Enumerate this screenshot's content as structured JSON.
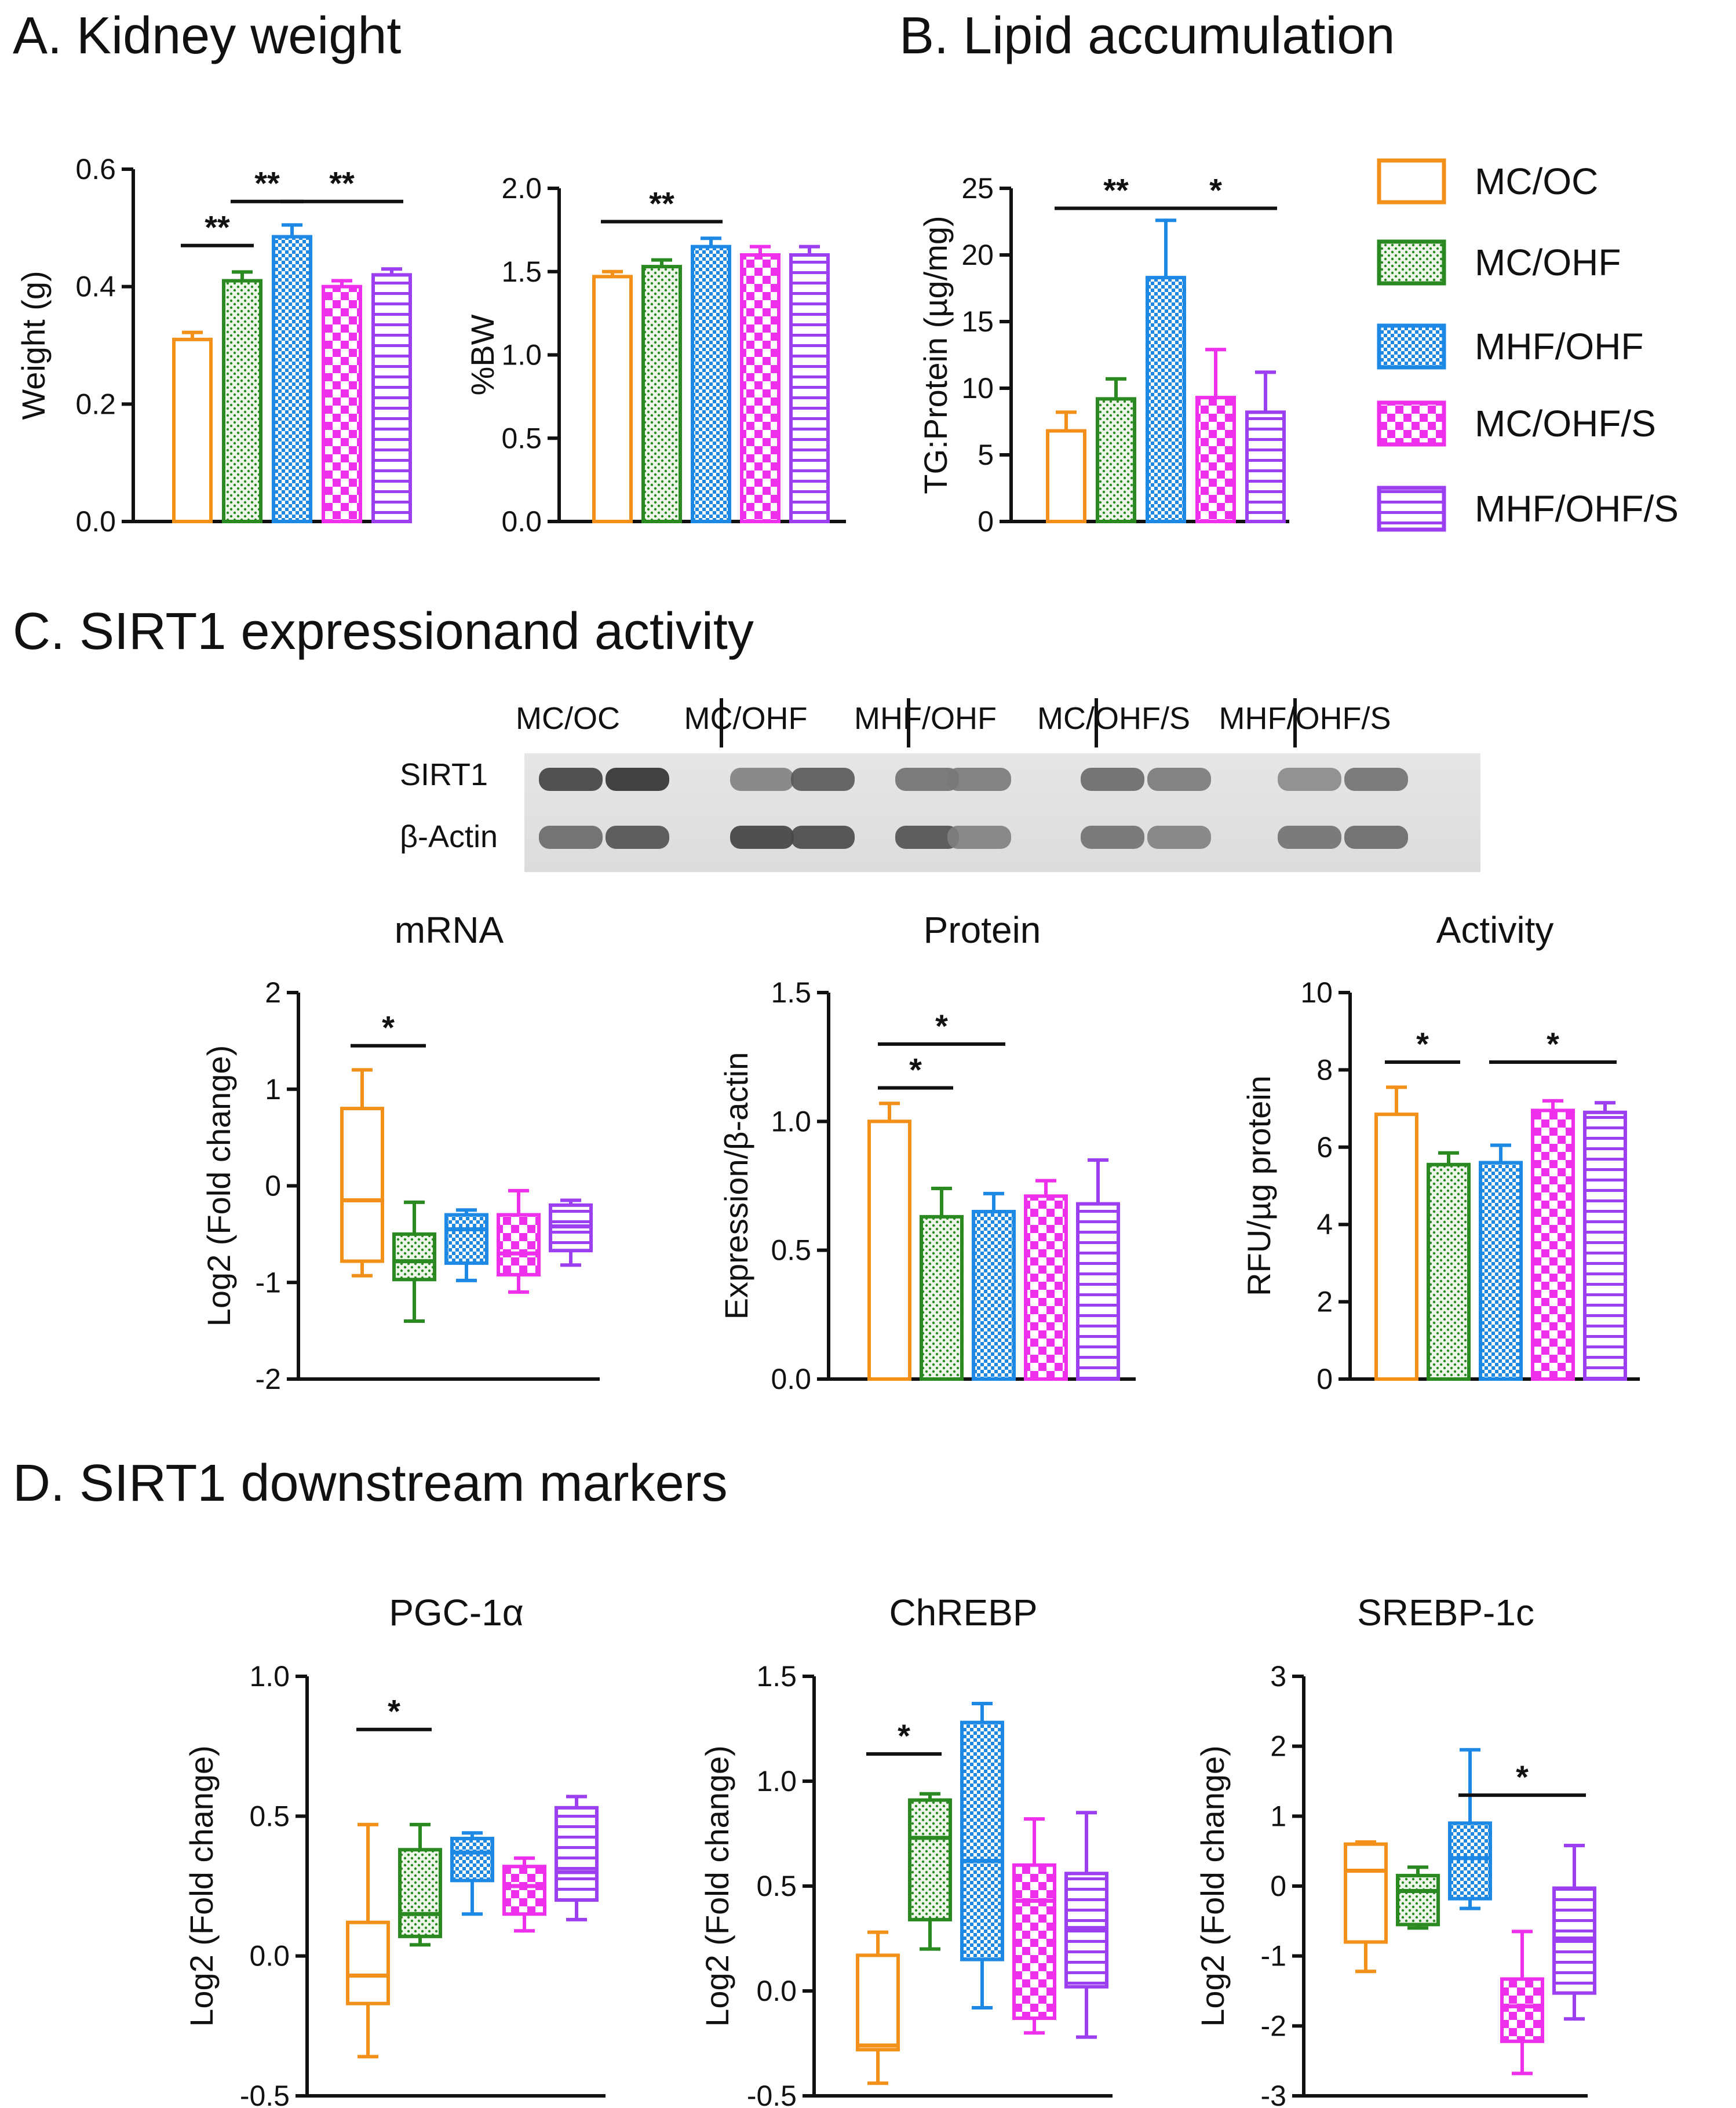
{
  "sections": {
    "a": "A. Kidney weight",
    "b": "B. Lipid accumulation",
    "c": "C. SIRT1 expressionand activity",
    "d": "D. SIRT1 downstream markers"
  },
  "groups": [
    {
      "name": "MC/OC",
      "color": "#f39019",
      "pattern": "none"
    },
    {
      "name": "MC/OHF",
      "color": "#2a8a21",
      "pattern": "dots"
    },
    {
      "name": "MHF/OHF",
      "color": "#1e88e5",
      "pattern": "check"
    },
    {
      "name": "MC/OHF/S",
      "color": "#ee2fec",
      "pattern": "bigcheck"
    },
    {
      "name": "MHF/OHF/S",
      "color": "#9b3ff0",
      "pattern": "hlines"
    }
  ],
  "blot": {
    "lanes": [
      "MC/OC",
      "MC/OHF",
      "MHF/OHF",
      "MC/OHF/S",
      "MHF/OHF/S"
    ],
    "rows": [
      "SIRT1",
      "β-Actin"
    ],
    "sirt1_intensity": [
      0.85,
      0.95,
      0.45,
      0.7,
      0.55,
      0.5,
      0.6,
      0.5,
      0.4,
      0.55
    ],
    "actin_intensity": [
      0.6,
      0.75,
      0.85,
      0.8,
      0.75,
      0.45,
      0.55,
      0.45,
      0.55,
      0.6
    ]
  },
  "chart_data": [
    {
      "id": "weight",
      "type": "bar",
      "title": "",
      "ylabel": "Weight (g)",
      "ylim": [
        0,
        0.6
      ],
      "yticks": [
        "0.0",
        "0.2",
        "0.4",
        "0.6"
      ],
      "categories": [
        "MC/OC",
        "MC/OHF",
        "MHF/OHF",
        "MC/OHF/S",
        "MHF/OHF/S"
      ],
      "values": [
        0.31,
        0.41,
        0.485,
        0.4,
        0.42
      ],
      "errors": [
        0.012,
        0.015,
        0.02,
        0.01,
        0.01
      ],
      "sig": [
        {
          "from": 0,
          "to": 1,
          "y": 0.47,
          "label": "**"
        },
        {
          "from": 1,
          "to": 2,
          "y": 0.545,
          "label": "**"
        },
        {
          "from": 2,
          "to": 4,
          "y": 0.545,
          "label": "**"
        }
      ]
    },
    {
      "id": "bw",
      "type": "bar",
      "title": "",
      "ylabel": "%BW",
      "ylim": [
        0,
        2.0
      ],
      "yticks": [
        "0.0",
        "0.5",
        "1.0",
        "1.5",
        "2.0"
      ],
      "categories": [
        "MC/OC",
        "MC/OHF",
        "MHF/OHF",
        "MC/OHF/S",
        "MHF/OHF/S"
      ],
      "values": [
        1.47,
        1.53,
        1.65,
        1.6,
        1.6
      ],
      "errors": [
        0.03,
        0.04,
        0.05,
        0.05,
        0.05
      ],
      "sig": [
        {
          "from": 0,
          "to": 2,
          "y": 1.8,
          "label": "**"
        }
      ]
    },
    {
      "id": "tg",
      "type": "bar",
      "title": "",
      "ylabel": "TG:Protein (µg/mg)",
      "ylim": [
        0,
        25
      ],
      "yticks": [
        "0",
        "5",
        "10",
        "15",
        "20",
        "25"
      ],
      "categories": [
        "MC/OC",
        "MC/OHF",
        "MHF/OHF",
        "MC/OHF/S",
        "MHF/OHF/S"
      ],
      "values": [
        6.8,
        9.2,
        18.3,
        9.3,
        8.2
      ],
      "errors": [
        1.4,
        1.5,
        4.3,
        3.6,
        3.0
      ],
      "sig": [
        {
          "from": 0,
          "to": 2,
          "y": 23.5,
          "label": "**"
        },
        {
          "from": 2,
          "to": 4,
          "y": 23.5,
          "label": "*"
        }
      ]
    },
    {
      "id": "mrna",
      "type": "box",
      "title": "mRNA",
      "ylabel": "Log2 (Fold change)",
      "ylim": [
        -2,
        2
      ],
      "yticks": [
        "-2",
        "-1",
        "0",
        "1",
        "2"
      ],
      "categories": [
        "MC/OC",
        "MC/OHF",
        "MHF/OHF",
        "MC/OHF/S",
        "MHF/OHF/S"
      ],
      "boxes": [
        [
          -0.93,
          -0.78,
          -0.15,
          0.8,
          1.2
        ],
        [
          -1.4,
          -0.97,
          -0.78,
          -0.5,
          -0.17
        ],
        [
          -0.98,
          -0.8,
          -0.45,
          -0.3,
          -0.25
        ],
        [
          -1.1,
          -0.92,
          -0.7,
          -0.3,
          -0.05
        ],
        [
          -0.82,
          -0.67,
          -0.42,
          -0.2,
          -0.15
        ]
      ],
      "sig": [
        {
          "from": 0,
          "to": 1,
          "y": 1.45,
          "label": "*"
        }
      ]
    },
    {
      "id": "protein",
      "type": "bar",
      "title": "Protein",
      "ylabel": "Expression/β-actin",
      "ylim": [
        0,
        1.5
      ],
      "yticks": [
        "0.0",
        "0.5",
        "1.0",
        "1.5"
      ],
      "categories": [
        "MC/OC",
        "MC/OHF",
        "MHF/OHF",
        "MC/OHF/S",
        "MHF/OHF/S"
      ],
      "values": [
        1.0,
        0.63,
        0.65,
        0.71,
        0.68
      ],
      "errors": [
        0.07,
        0.11,
        0.07,
        0.06,
        0.17
      ],
      "sig": [
        {
          "from": 0,
          "to": 1,
          "y": 1.13,
          "label": "*"
        },
        {
          "from": 0,
          "to": 2,
          "y": 1.3,
          "label": "*"
        }
      ]
    },
    {
      "id": "activity",
      "type": "bar",
      "title": "Activity",
      "ylabel": "RFU/µg protein",
      "ylim": [
        0,
        10
      ],
      "yticks": [
        "0",
        "2",
        "4",
        "6",
        "8",
        "10"
      ],
      "categories": [
        "MC/OC",
        "MC/OHF",
        "MHF/OHF",
        "MC/OHF/S",
        "MHF/OHF/S"
      ],
      "values": [
        6.85,
        5.55,
        5.6,
        6.95,
        6.9
      ],
      "errors": [
        0.7,
        0.3,
        0.45,
        0.25,
        0.25
      ],
      "sig": [
        {
          "from": 0,
          "to": 1,
          "y": 8.2,
          "label": "*"
        },
        {
          "from": 2,
          "to": 4,
          "y": 8.2,
          "label": "*"
        }
      ]
    },
    {
      "id": "pgc",
      "type": "box",
      "title": "PGC-1α",
      "ylabel": "Log2 (Fold change)",
      "ylim": [
        -0.5,
        1.0
      ],
      "yticks": [
        "-0.5",
        "0.0",
        "0.5",
        "1.0"
      ],
      "categories": [
        "MC/OC",
        "MC/OHF",
        "MHF/OHF",
        "MC/OHF/S",
        "MHF/OHF/S"
      ],
      "boxes": [
        [
          -0.36,
          -0.17,
          -0.07,
          0.12,
          0.47
        ],
        [
          0.04,
          0.07,
          0.15,
          0.38,
          0.47
        ],
        [
          0.15,
          0.27,
          0.37,
          0.42,
          0.44
        ],
        [
          0.09,
          0.15,
          0.25,
          0.32,
          0.35
        ],
        [
          0.13,
          0.2,
          0.3,
          0.53,
          0.57
        ]
      ],
      "sig": [
        {
          "from": 0,
          "to": 1,
          "y": 0.81,
          "label": "*"
        }
      ]
    },
    {
      "id": "chrebp",
      "type": "box",
      "title": "ChREBP",
      "ylabel": "Log2 (Fold change)",
      "ylim": [
        -0.5,
        1.5
      ],
      "yticks": [
        "-0.5",
        "0.0",
        "0.5",
        "1.0",
        "1.5"
      ],
      "categories": [
        "MC/OC",
        "MC/OHF",
        "MHF/OHF",
        "MC/OHF/S",
        "MHF/OHF/S"
      ],
      "boxes": [
        [
          -0.44,
          -0.28,
          -0.26,
          0.17,
          0.28
        ],
        [
          0.2,
          0.34,
          0.73,
          0.91,
          0.94
        ],
        [
          -0.08,
          0.15,
          0.62,
          1.28,
          1.37
        ],
        [
          -0.2,
          -0.13,
          0.43,
          0.6,
          0.82
        ],
        [
          -0.22,
          0.02,
          0.3,
          0.56,
          0.85
        ]
      ],
      "sig": [
        {
          "from": 0,
          "to": 1,
          "y": 1.13,
          "label": "*"
        }
      ]
    },
    {
      "id": "srebp",
      "type": "box",
      "title": "SREBP-1c",
      "ylabel": "Log2 (Fold change)",
      "ylim": [
        -3,
        3
      ],
      "yticks": [
        "-3",
        "-2",
        "-1",
        "0",
        "1",
        "2",
        "3"
      ],
      "categories": [
        "MC/OC",
        "MC/OHF",
        "MHF/OHF",
        "MC/OHF/S",
        "MHF/OHF/S"
      ],
      "boxes": [
        [
          -1.22,
          -0.8,
          0.22,
          0.6,
          0.63
        ],
        [
          -0.6,
          -0.55,
          -0.07,
          0.15,
          0.27
        ],
        [
          -0.32,
          -0.18,
          0.4,
          0.9,
          1.95
        ],
        [
          -2.68,
          -2.22,
          -1.72,
          -1.33,
          -0.65
        ],
        [
          -1.9,
          -1.53,
          -0.75,
          -0.03,
          0.58
        ]
      ],
      "sig": [
        {
          "from": 2,
          "to": 4,
          "y": 1.3,
          "label": "*"
        }
      ]
    }
  ]
}
